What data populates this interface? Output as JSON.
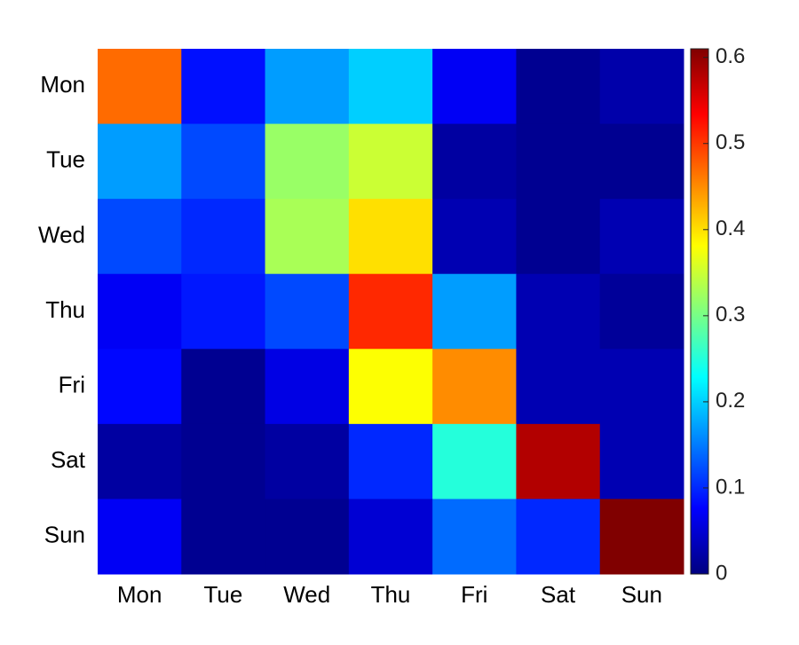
{
  "chart_data": {
    "type": "heatmap",
    "x_categories": [
      "Mon",
      "Tue",
      "Wed",
      "Thu",
      "Fri",
      "Sat",
      "Sun"
    ],
    "y_categories": [
      "Mon",
      "Tue",
      "Wed",
      "Thu",
      "Fri",
      "Sat",
      "Sun"
    ],
    "values": [
      [
        0.47,
        0.085,
        0.17,
        0.2,
        0.07,
        0.01,
        0.025
      ],
      [
        0.17,
        0.12,
        0.32,
        0.35,
        0.02,
        0.01,
        0.01
      ],
      [
        0.12,
        0.1,
        0.33,
        0.4,
        0.03,
        0.01,
        0.03
      ],
      [
        0.07,
        0.09,
        0.12,
        0.51,
        0.17,
        0.03,
        0.015
      ],
      [
        0.08,
        0.01,
        0.06,
        0.38,
        0.45,
        0.03,
        0.03
      ],
      [
        0.02,
        0.01,
        0.02,
        0.1,
        0.25,
        0.58,
        0.03
      ],
      [
        0.07,
        0.01,
        0.01,
        0.05,
        0.14,
        0.1,
        0.61
      ]
    ],
    "colormap": "jet",
    "clim": [
      0,
      0.61
    ],
    "cticks": [
      0,
      0.1,
      0.2,
      0.3,
      0.4,
      0.5,
      0.6
    ]
  }
}
